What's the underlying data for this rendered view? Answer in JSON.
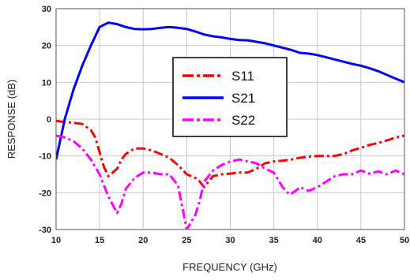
{
  "chart_data": {
    "type": "line",
    "title": "",
    "xlabel": "FREQUENCY (GHz)",
    "ylabel": "RESPONSE (dB)",
    "xlim": [
      10,
      50
    ],
    "ylim": [
      -30,
      30
    ],
    "xticks": [
      10,
      15,
      20,
      25,
      30,
      35,
      40,
      45,
      50
    ],
    "yticks": [
      -30,
      -20,
      -10,
      0,
      10,
      20,
      30
    ],
    "grid": true,
    "legend_position": "center",
    "series": [
      {
        "name": "S11",
        "color": "#ff0000",
        "style": "dash-dot",
        "points": [
          [
            10,
            -0.5
          ],
          [
            11,
            -0.8
          ],
          [
            12,
            -1
          ],
          [
            13,
            -1.3
          ],
          [
            14,
            -3
          ],
          [
            14.5,
            -5
          ],
          [
            15,
            -9
          ],
          [
            15.5,
            -13
          ],
          [
            16,
            -15.5
          ],
          [
            16.5,
            -14.5
          ],
          [
            17,
            -13.5
          ],
          [
            17.5,
            -11
          ],
          [
            18,
            -9.5
          ],
          [
            19,
            -8
          ],
          [
            20,
            -8
          ],
          [
            21,
            -8.5
          ],
          [
            22,
            -9.5
          ],
          [
            23,
            -10.5
          ],
          [
            24,
            -12.5
          ],
          [
            25,
            -15
          ],
          [
            26,
            -16
          ],
          [
            26.5,
            -17
          ],
          [
            27,
            -18.5
          ],
          [
            28,
            -15.5
          ],
          [
            29,
            -15
          ],
          [
            30,
            -14.8
          ],
          [
            31,
            -14.5
          ],
          [
            32,
            -14.5
          ],
          [
            33,
            -13.5
          ],
          [
            34,
            -12
          ],
          [
            35,
            -11.5
          ],
          [
            36,
            -11.3
          ],
          [
            37,
            -11
          ],
          [
            38,
            -10.5
          ],
          [
            39,
            -10.2
          ],
          [
            40,
            -10
          ],
          [
            41,
            -10
          ],
          [
            42,
            -10
          ],
          [
            43,
            -9.5
          ],
          [
            44,
            -8.5
          ],
          [
            45,
            -7.8
          ],
          [
            46,
            -7
          ],
          [
            47,
            -6.5
          ],
          [
            48,
            -5.8
          ],
          [
            49,
            -5
          ],
          [
            50,
            -4.5
          ]
        ]
      },
      {
        "name": "S21",
        "color": "#0000ff",
        "style": "solid",
        "points": [
          [
            10,
            -11
          ],
          [
            11,
            0
          ],
          [
            12,
            8
          ],
          [
            13,
            14.5
          ],
          [
            14,
            20
          ],
          [
            15,
            25
          ],
          [
            16,
            26.2
          ],
          [
            17,
            25.8
          ],
          [
            18,
            25
          ],
          [
            19,
            24.5
          ],
          [
            20,
            24.4
          ],
          [
            21,
            24.5
          ],
          [
            22,
            24.8
          ],
          [
            23,
            25
          ],
          [
            24,
            24.8
          ],
          [
            25,
            24.5
          ],
          [
            26,
            23.8
          ],
          [
            27,
            23
          ],
          [
            28,
            22.5
          ],
          [
            29,
            22.2
          ],
          [
            30,
            21.8
          ],
          [
            31,
            21.5
          ],
          [
            32,
            21.4
          ],
          [
            33,
            21
          ],
          [
            34,
            20.6
          ],
          [
            35,
            20
          ],
          [
            36,
            19.4
          ],
          [
            37,
            18.8
          ],
          [
            38,
            18
          ],
          [
            39,
            17.8
          ],
          [
            40,
            17.4
          ],
          [
            41,
            16.8
          ],
          [
            42,
            16.2
          ],
          [
            43,
            15.6
          ],
          [
            44,
            15
          ],
          [
            45,
            14.5
          ],
          [
            46,
            13.8
          ],
          [
            47,
            13
          ],
          [
            48,
            12
          ],
          [
            49,
            11
          ],
          [
            50,
            10
          ]
        ]
      },
      {
        "name": "S22",
        "color": "#ff00ff",
        "style": "dash-dot",
        "points": [
          [
            10,
            -4.5
          ],
          [
            11,
            -5
          ],
          [
            12,
            -6
          ],
          [
            13,
            -8
          ],
          [
            14,
            -11
          ],
          [
            15,
            -15
          ],
          [
            16,
            -21
          ],
          [
            17,
            -25.5
          ],
          [
            17.5,
            -23
          ],
          [
            18,
            -19
          ],
          [
            19,
            -16
          ],
          [
            20,
            -14.5
          ],
          [
            21,
            -14.5
          ],
          [
            22,
            -15
          ],
          [
            23,
            -15
          ],
          [
            24,
            -18
          ],
          [
            24.5,
            -24
          ],
          [
            25,
            -30
          ],
          [
            25.5,
            -28
          ],
          [
            26,
            -26
          ],
          [
            26.5,
            -22
          ],
          [
            27,
            -17
          ],
          [
            28,
            -14
          ],
          [
            29,
            -12.5
          ],
          [
            30,
            -11.5
          ],
          [
            31,
            -11
          ],
          [
            32,
            -11.5
          ],
          [
            33,
            -12
          ],
          [
            34,
            -13.5
          ],
          [
            35,
            -14.5
          ],
          [
            36,
            -18.5
          ],
          [
            36.8,
            -20.5
          ],
          [
            37.5,
            -19.5
          ],
          [
            38,
            -18.5
          ],
          [
            39,
            -19.5
          ],
          [
            40,
            -18.5
          ],
          [
            41,
            -17
          ],
          [
            42,
            -15.5
          ],
          [
            43,
            -15
          ],
          [
            44,
            -15
          ],
          [
            45,
            -14
          ],
          [
            46,
            -14.8
          ],
          [
            47,
            -14.2
          ],
          [
            48,
            -15
          ],
          [
            49,
            -14
          ],
          [
            50,
            -15
          ]
        ]
      }
    ]
  }
}
